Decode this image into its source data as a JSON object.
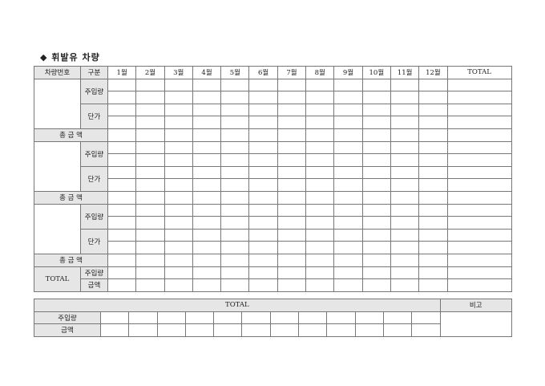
{
  "title": "◆ 휘발유 차량",
  "main_table": {
    "headers": {
      "vehicle_no": "차량번호",
      "category": "구분",
      "months": [
        "1월",
        "2월",
        "3월",
        "4월",
        "5월",
        "6월",
        "7월",
        "8월",
        "9월",
        "10월",
        "11월",
        "12월"
      ],
      "total": "TOTAL"
    },
    "blocks": [
      {
        "vehicle_no": "",
        "quantity_label": "주입량",
        "unit_price_label": "단가",
        "total_amount_label": "총 금 액"
      },
      {
        "vehicle_no": "",
        "quantity_label": "주입량",
        "unit_price_label": "단가",
        "total_amount_label": "총 금 액"
      },
      {
        "vehicle_no": "",
        "quantity_label": "주입량",
        "unit_price_label": "단가",
        "total_amount_label": "총 금 액"
      }
    ],
    "total_section": {
      "label": "TOTAL",
      "quantity_label": "주입량",
      "amount_label": "금액"
    }
  },
  "summary_table": {
    "header": "TOTAL",
    "remarks": "비고",
    "rows": [
      {
        "label": "주입량"
      },
      {
        "label": "금액"
      }
    ],
    "column_count": 12
  }
}
